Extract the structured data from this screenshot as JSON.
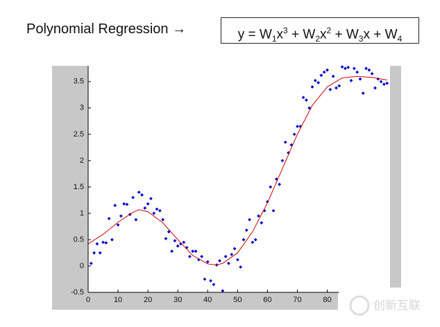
{
  "header": {
    "title": "Polynomial Regression →",
    "formula": [
      {
        "text": "y = W"
      },
      {
        "sub": "1"
      },
      {
        "text": "x"
      },
      {
        "sup": "3"
      },
      {
        "text": " + W"
      },
      {
        "sub": "2"
      },
      {
        "text": "x"
      },
      {
        "sup": "2"
      },
      {
        "text": " + W"
      },
      {
        "sub": "3"
      },
      {
        "text": "x + W"
      },
      {
        "sub": "4"
      }
    ]
  },
  "chart_data": {
    "type": "scatter",
    "xlim": [
      0,
      101
    ],
    "ylim": [
      -0.5,
      3.8
    ],
    "xticks": [
      0,
      10,
      20,
      30,
      40,
      50,
      60,
      70,
      80
    ],
    "yticks": [
      -0.5,
      0,
      0.5,
      1,
      1.5,
      2,
      2.5,
      3,
      3.5
    ],
    "series": [
      {
        "type": "scatter",
        "color": "#0000cc",
        "x": [
          1,
          2,
          3,
          4,
          5,
          6,
          7,
          8,
          9,
          10,
          11,
          12,
          13,
          14,
          15,
          16,
          17,
          18,
          19,
          20,
          21,
          22,
          23,
          24,
          25,
          26,
          27,
          28,
          29,
          30,
          31,
          32,
          33,
          34,
          35,
          36,
          37,
          38,
          39,
          40,
          41,
          42,
          43,
          44,
          45,
          46,
          47,
          48,
          49,
          50,
          51,
          52,
          53,
          54,
          55,
          56,
          57,
          58,
          59,
          60,
          61,
          62,
          63,
          64,
          65,
          66,
          67,
          68,
          69,
          70,
          71,
          72,
          73,
          74,
          75,
          76,
          77,
          78,
          79,
          80,
          81,
          82,
          83,
          84,
          85,
          86,
          87,
          88,
          89,
          90,
          91,
          92,
          93,
          94,
          95,
          96,
          97,
          98,
          99,
          100
        ],
        "values": [
          0.05,
          0.25,
          0.42,
          0.25,
          0.45,
          0.44,
          0.9,
          0.5,
          1.15,
          0.78,
          0.95,
          1.18,
          1.17,
          0.98,
          1.3,
          0.88,
          1.4,
          1.35,
          1.1,
          1.18,
          1.28,
          1.0,
          1.08,
          1.05,
          0.88,
          0.52,
          0.65,
          0.28,
          0.48,
          0.38,
          0.42,
          0.45,
          0.35,
          0.18,
          0.28,
          0.28,
          0.12,
          0.18,
          -0.25,
          0.08,
          -0.28,
          -0.35,
          0.02,
          0.1,
          -0.47,
          0.18,
          0.05,
          0.22,
          0.33,
          0.12,
          -0.02,
          0.5,
          0.68,
          0.88,
          0.45,
          0.5,
          0.95,
          0.82,
          1.05,
          1.22,
          1.5,
          1.05,
          1.65,
          1.55,
          2.0,
          2.35,
          2.15,
          2.3,
          2.5,
          2.65,
          2.65,
          3.2,
          3.15,
          3.0,
          3.4,
          3.52,
          3.48,
          3.62,
          3.68,
          3.72,
          3.35,
          3.6,
          3.38,
          3.42,
          3.78,
          3.75,
          3.77,
          3.52,
          3.75,
          3.68,
          3.55,
          3.28,
          3.75,
          3.72,
          3.65,
          3.38,
          3.55,
          3.5,
          3.45,
          3.47
        ]
      },
      {
        "type": "line",
        "color": "#cc0000",
        "x": [
          0,
          5,
          10,
          15,
          17,
          20,
          25,
          30,
          35,
          40,
          43,
          45,
          50,
          55,
          60,
          65,
          70,
          75,
          80,
          85,
          90,
          95,
          100
        ],
        "values": [
          0.42,
          0.6,
          0.83,
          1.02,
          1.07,
          1.03,
          0.82,
          0.5,
          0.2,
          0.04,
          0.02,
          0.05,
          0.25,
          0.65,
          1.2,
          1.85,
          2.5,
          3.05,
          3.4,
          3.57,
          3.6,
          3.58,
          3.53
        ]
      }
    ]
  },
  "watermark": "创新互联"
}
